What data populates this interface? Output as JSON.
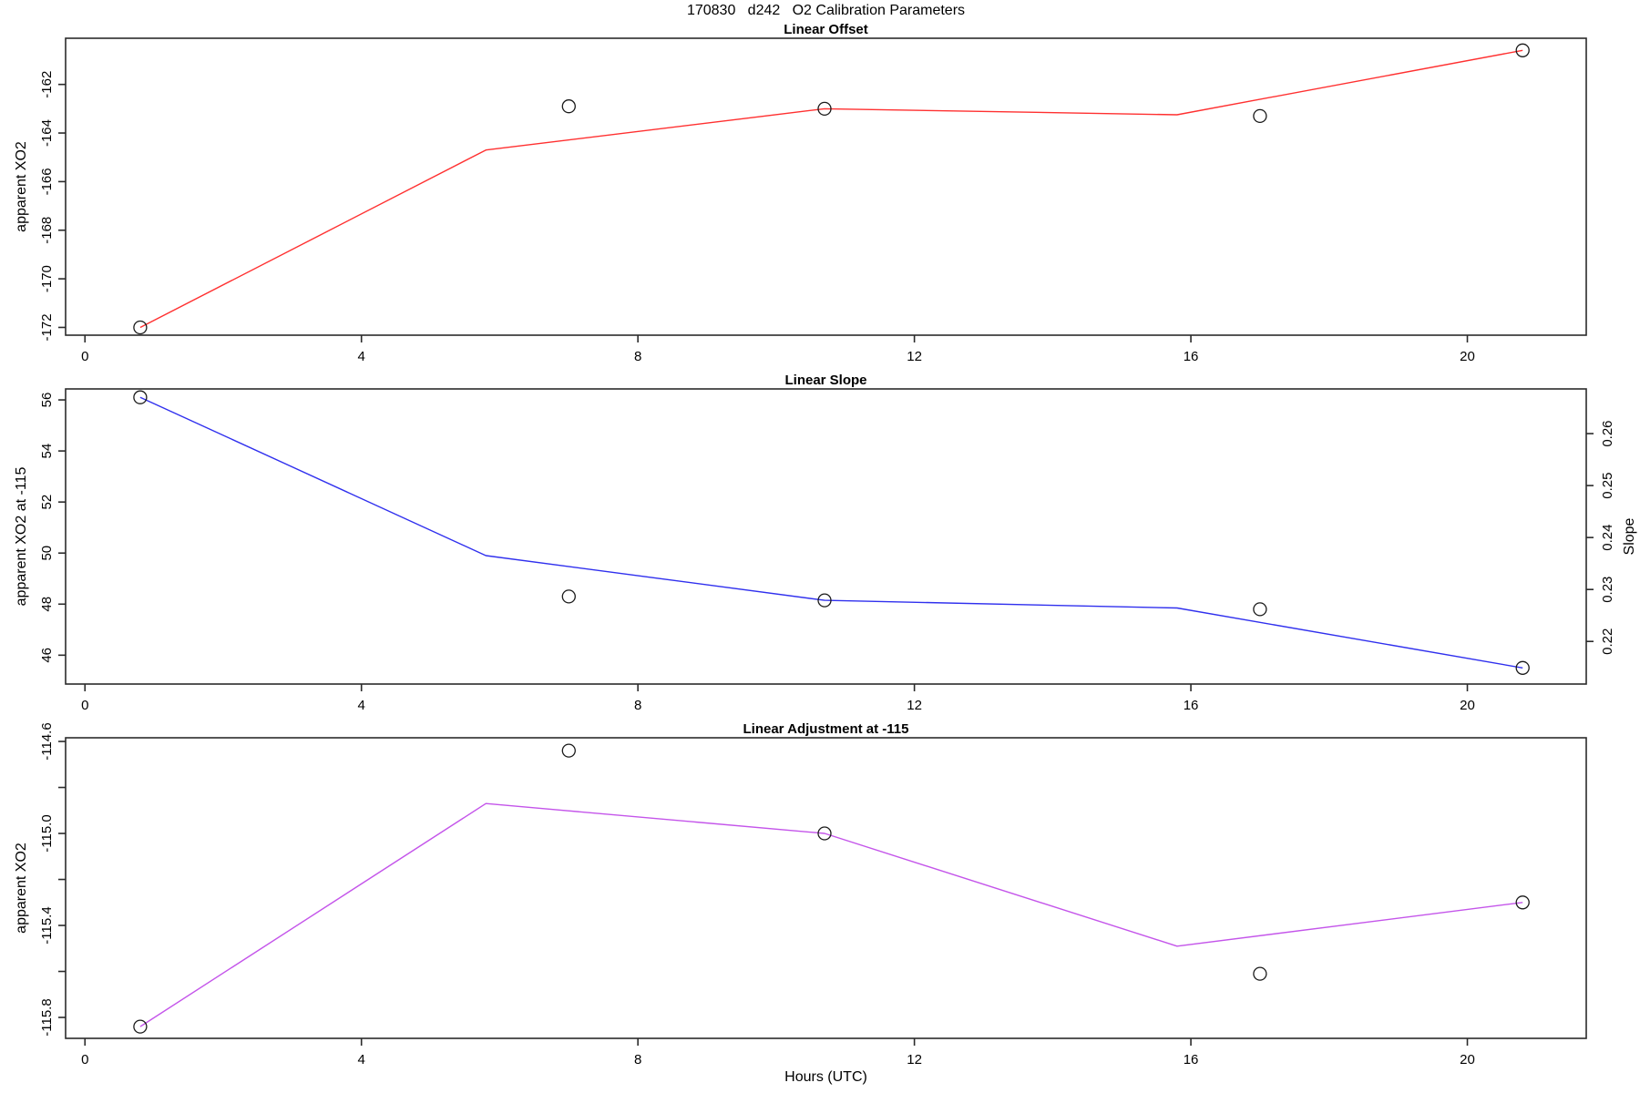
{
  "title": "170830   d242   O2 Calibration Parameters",
  "xlabel": "Hours (UTC)",
  "colors": {
    "offset_line": "#ff3030",
    "slope_line": "#3030ee",
    "adjustment_line": "#c455ea",
    "axis": "#2b2b2b",
    "point_ring": "#1a1a1a",
    "text": "#000000"
  },
  "chart_data": [
    {
      "type": "line",
      "title": "Linear Offset",
      "ylabel": "apparent XO2",
      "line_color": "#ff3030",
      "xlim": [
        -0.28,
        21.72
      ],
      "ylim": [
        -172.32,
        -160.1
      ],
      "xticks": [
        0,
        4,
        8,
        12,
        16,
        20
      ],
      "yticks": [
        {
          "v": -162,
          "label": "-162"
        },
        {
          "v": -164,
          "label": "-164"
        },
        {
          "v": -166,
          "label": "-166"
        },
        {
          "v": -168,
          "label": "-168"
        },
        {
          "v": -170,
          "label": "-170"
        },
        {
          "v": -172,
          "label": "-172"
        }
      ],
      "series": [
        {
          "name": "fitted-line",
          "kind": "line",
          "x": [
            0.8,
            5.8,
            10.7,
            15.8,
            20.8
          ],
          "y": [
            -172.0,
            -164.7,
            -163.0,
            -163.25,
            -160.6
          ]
        },
        {
          "name": "measurements",
          "kind": "scatter",
          "x": [
            0.8,
            7.0,
            10.7,
            17.0,
            20.8
          ],
          "y": [
            -172.0,
            -162.9,
            -163.0,
            -163.3,
            -160.6
          ]
        }
      ]
    },
    {
      "type": "line",
      "title": "Linear Slope",
      "ylabel": "apparent XO2 at -115",
      "y2label": "Slope",
      "line_color": "#3030ee",
      "xlim": [
        -0.28,
        21.72
      ],
      "ylim": [
        44.87,
        56.43
      ],
      "y2lim": [
        0.2118,
        0.2686
      ],
      "xticks": [
        0,
        4,
        8,
        12,
        16,
        20
      ],
      "yticks": [
        {
          "v": 56,
          "label": "56"
        },
        {
          "v": 54,
          "label": "54"
        },
        {
          "v": 52,
          "label": "52"
        },
        {
          "v": 50,
          "label": "50"
        },
        {
          "v": 48,
          "label": "48"
        },
        {
          "v": 46,
          "label": "46"
        }
      ],
      "y2ticks": [
        {
          "v": 0.26,
          "label": "0.26"
        },
        {
          "v": 0.25,
          "label": "0.25"
        },
        {
          "v": 0.24,
          "label": "0.24"
        },
        {
          "v": 0.23,
          "label": "0.23"
        },
        {
          "v": 0.22,
          "label": "0.22"
        }
      ],
      "series": [
        {
          "name": "fitted-line",
          "kind": "line",
          "x": [
            0.8,
            5.8,
            10.7,
            15.8,
            20.8
          ],
          "y": [
            56.1,
            49.9,
            48.15,
            47.85,
            45.5
          ]
        },
        {
          "name": "measurements",
          "kind": "scatter",
          "x": [
            0.8,
            7.0,
            10.7,
            17.0,
            20.8
          ],
          "y": [
            56.1,
            48.3,
            48.15,
            47.8,
            45.5
          ]
        }
      ]
    },
    {
      "type": "line",
      "title": "Linear Adjustment at -115",
      "ylabel": "apparent XO2",
      "line_color": "#c455ea",
      "xlim": [
        -0.28,
        21.72
      ],
      "ylim": [
        -115.891,
        -114.584
      ],
      "xticks": [
        0,
        4,
        8,
        12,
        16,
        20
      ],
      "yticks": [
        {
          "v": -114.6,
          "label": "-114.6"
        },
        {
          "v": -114.8,
          "label": ""
        },
        {
          "v": -115.0,
          "label": "-115.0"
        },
        {
          "v": -115.2,
          "label": ""
        },
        {
          "v": -115.4,
          "label": "-115.4"
        },
        {
          "v": -115.6,
          "label": ""
        },
        {
          "v": -115.8,
          "label": "-115.8"
        }
      ],
      "series": [
        {
          "name": "fitted-line",
          "kind": "line",
          "x": [
            0.8,
            5.8,
            10.7,
            15.8,
            20.8
          ],
          "y": [
            -115.84,
            -114.87,
            -115.0,
            -115.49,
            -115.3
          ]
        },
        {
          "name": "measurements",
          "kind": "scatter",
          "x": [
            0.8,
            7.0,
            10.7,
            17.0,
            20.8
          ],
          "y": [
            -115.84,
            -114.64,
            -115.0,
            -115.61,
            -115.3
          ]
        }
      ]
    }
  ]
}
